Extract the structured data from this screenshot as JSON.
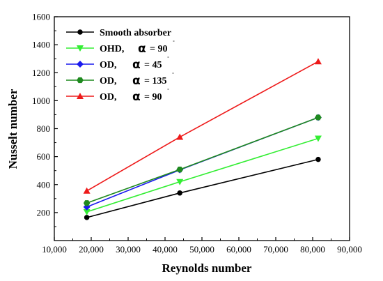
{
  "chart_data": {
    "type": "line",
    "xlabel": "Reynolds number",
    "ylabel": "Nusselt number",
    "xlim": [
      10000,
      90000
    ],
    "ylim": [
      0,
      1600
    ],
    "x_ticks": [
      "10,000",
      "20,000",
      "30,000",
      "40,000",
      "50,000",
      "60,000",
      "70,000",
      "80,000",
      "90,000"
    ],
    "y_ticks": [
      "200",
      "400",
      "600",
      "800",
      "1000",
      "1200",
      "1400",
      "1600"
    ],
    "x": [
      18800,
      44000,
      81500
    ],
    "series": [
      {
        "name": "Smooth absorber",
        "label_text": "Smooth absorber",
        "sym": "",
        "eq": "",
        "deg": "",
        "color": "#000000",
        "marker": "circle",
        "values": [
          165,
          340,
          580
        ]
      },
      {
        "name": "OHD, α = 90˚",
        "label_text": "OHD,",
        "sym": "α",
        "eq": "= 90",
        "deg": "˚",
        "color": "#33ee33",
        "marker": "triangle-down",
        "values": [
          205,
          420,
          730
        ]
      },
      {
        "name": "OD, α = 45˚",
        "label_text": "OD,",
        "sym": "α",
        "eq": "= 45",
        "deg": "˚",
        "color": "#1a1aee",
        "marker": "diamond",
        "values": [
          240,
          505,
          880
        ]
      },
      {
        "name": "OD, α = 135˚",
        "label_text": "OD,",
        "sym": "α",
        "eq": "= 135",
        "deg": "˚",
        "color": "#1f8a1f",
        "marker": "hexagon",
        "values": [
          268,
          508,
          880
        ]
      },
      {
        "name": "OD, α = 90˚",
        "label_text": "OD,",
        "sym": "α",
        "eq": "= 90",
        "deg": "˚",
        "color": "#ee1a1a",
        "marker": "triangle-up",
        "values": [
          355,
          740,
          1280
        ]
      }
    ]
  }
}
